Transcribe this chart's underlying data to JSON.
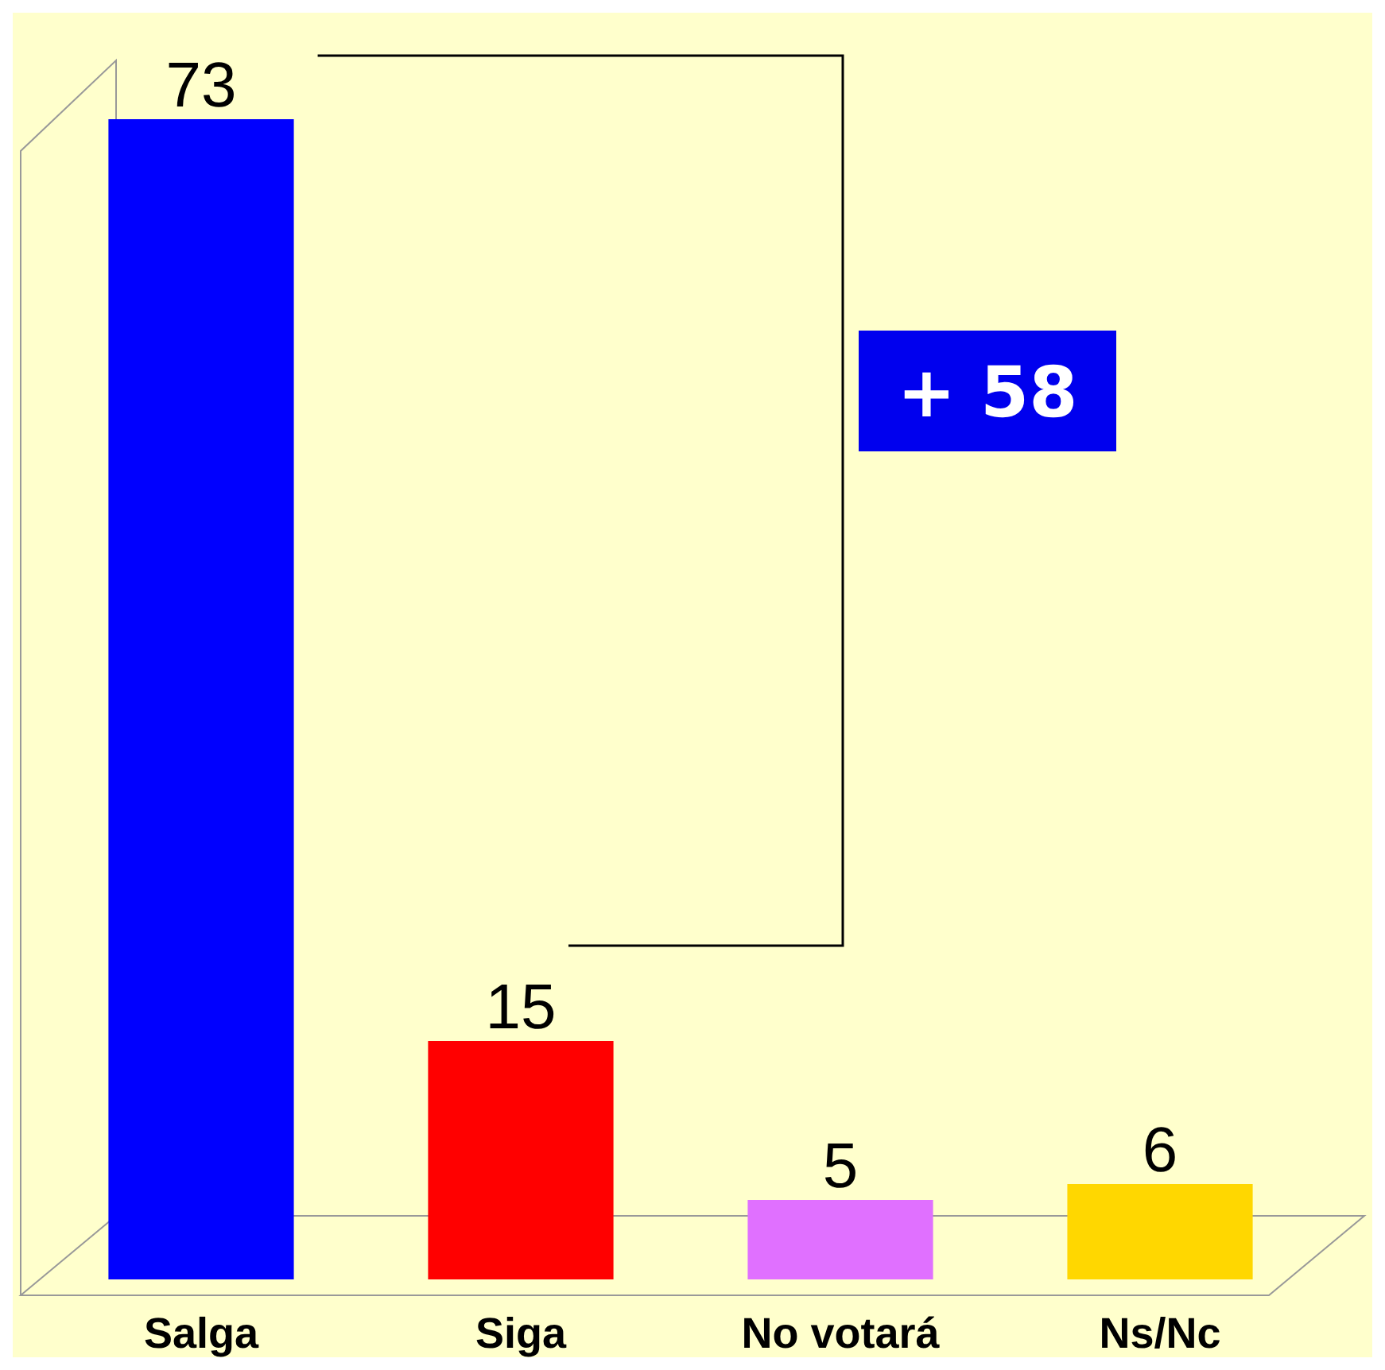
{
  "chart_data": {
    "type": "bar",
    "categories": [
      "Salga",
      "Siga",
      "No votará",
      "Ns/Nc"
    ],
    "values": [
      73,
      15,
      5,
      6
    ],
    "colors": [
      "#0000ff",
      "#ff0000",
      "#e070ff",
      "#ffd700"
    ],
    "data_labels": true,
    "annotations": [
      "+ 58"
    ]
  }
}
